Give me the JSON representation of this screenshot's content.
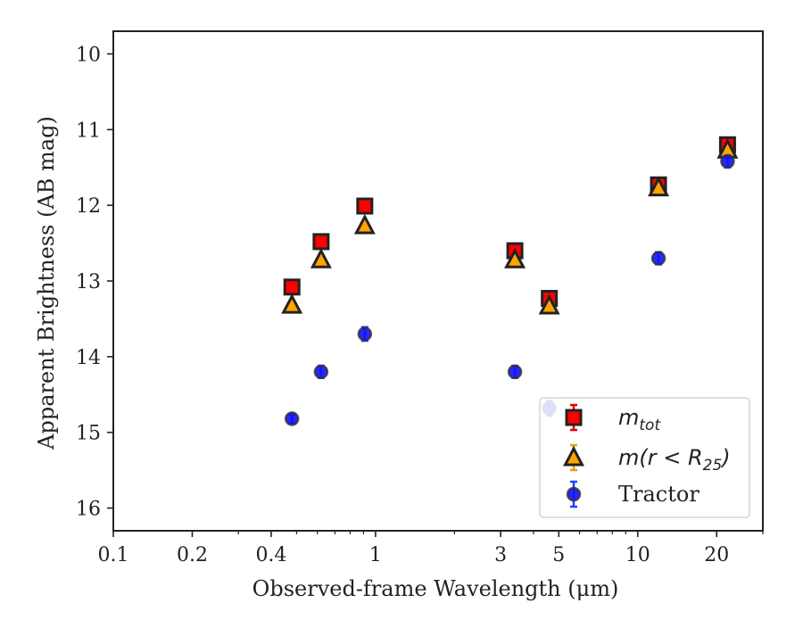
{
  "chart_data": {
    "type": "scatter",
    "title": "",
    "xlabel": "Observed-frame Wavelength (μm)",
    "ylabel": "Apparent Brightness (AB mag)",
    "xscale": "log",
    "xlim": [
      0.1,
      30
    ],
    "ylim": [
      16.3,
      9.7
    ],
    "y_inverted": true,
    "x_ticks": [
      {
        "value": 0.1,
        "label": "0.1"
      },
      {
        "value": 0.2,
        "label": "0.2"
      },
      {
        "value": 0.4,
        "label": "0.4"
      },
      {
        "value": 1,
        "label": "1"
      },
      {
        "value": 3,
        "label": "3"
      },
      {
        "value": 5,
        "label": "5"
      },
      {
        "value": 10,
        "label": "10"
      },
      {
        "value": 20,
        "label": "20"
      }
    ],
    "y_ticks": [
      10,
      11,
      12,
      13,
      14,
      15,
      16
    ],
    "grid": false,
    "legend_position": "bottom-right",
    "series": [
      {
        "name": "m_tot",
        "marker": "square",
        "color": "#ff0000",
        "edge_color": "#222222",
        "err_color": "#dd0000",
        "x": [
          0.48,
          0.62,
          0.91,
          3.4,
          4.6,
          12,
          22
        ],
        "y": [
          13.08,
          12.48,
          12.01,
          12.6,
          13.23,
          11.73,
          11.2
        ],
        "yerr": [
          0.03,
          0.03,
          0.05,
          0.04,
          0.08,
          0.05,
          0.06
        ]
      },
      {
        "name": "m(r < R25)",
        "marker": "triangle",
        "color": "#ffa500",
        "edge_color": "#222222",
        "err_color": "#e8a000",
        "x": [
          0.48,
          0.62,
          0.91,
          3.4,
          4.6,
          12,
          22
        ],
        "y": [
          13.32,
          12.72,
          12.27,
          12.72,
          13.33,
          11.77,
          11.27
        ],
        "yerr": [
          0.03,
          0.03,
          0.04,
          0.04,
          0.06,
          0.05,
          0.05
        ]
      },
      {
        "name": "Tractor",
        "marker": "circle",
        "color": "#1010ff",
        "edge_color": "#333333",
        "err_color": "#1f3fff",
        "x": [
          0.48,
          0.62,
          0.91,
          3.4,
          4.6,
          12,
          22
        ],
        "y": [
          14.82,
          14.2,
          13.7,
          14.2,
          14.68,
          12.7,
          11.42
        ],
        "yerr": [
          0.06,
          0.08,
          0.09,
          0.08,
          0.1,
          0.08,
          0.08
        ]
      }
    ],
    "legend": [
      {
        "main": "m",
        "sub": "tot",
        "rest": ""
      },
      {
        "main": "m(r < R",
        "sub": "25",
        "rest": ")"
      },
      {
        "main": "Tractor",
        "sub": "",
        "rest": ""
      }
    ]
  }
}
